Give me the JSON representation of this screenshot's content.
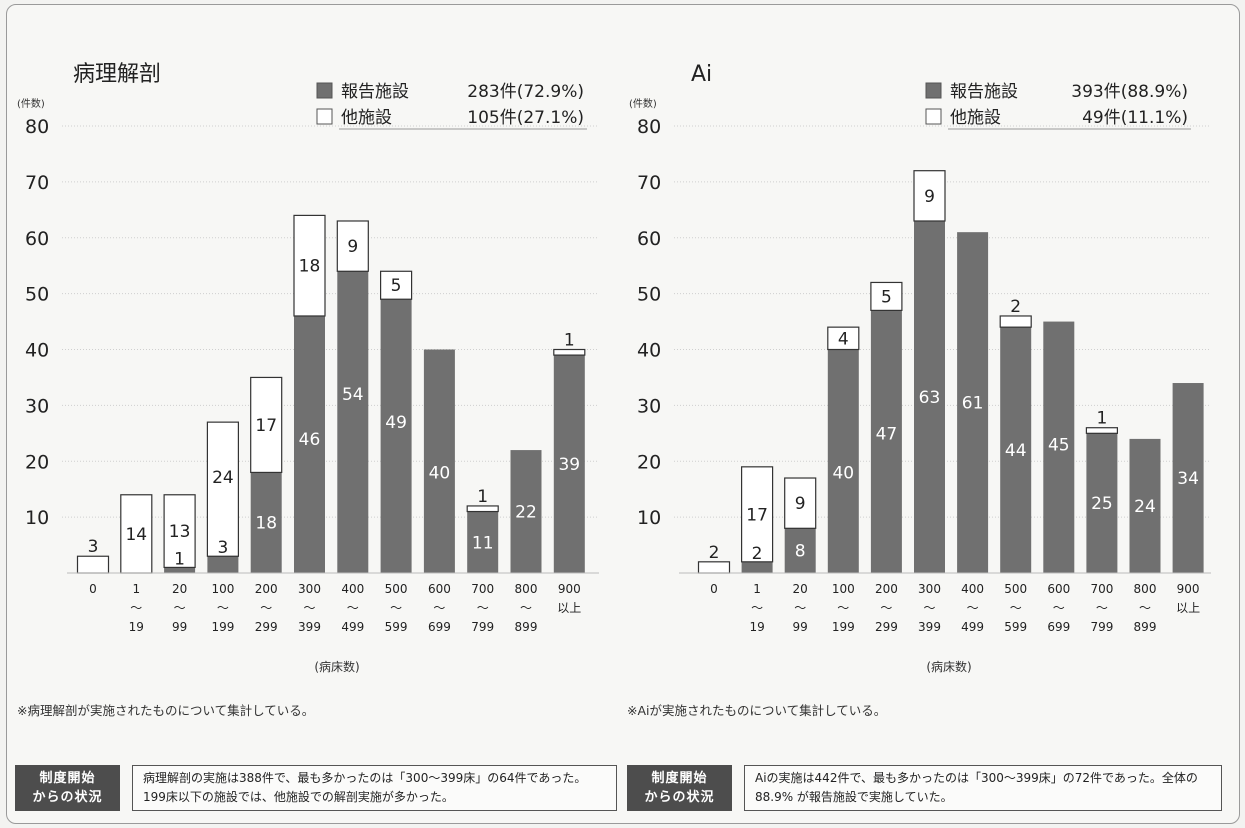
{
  "charts": [
    {
      "title": "病理解剖",
      "unit": "(件数)",
      "xlabel": "(病床数)",
      "legend": [
        {
          "label": "報告施設",
          "value": "283件(72.9%)"
        },
        {
          "label": "他施設",
          "value": "105件(27.1%)"
        }
      ],
      "note": "※病理解剖が実施されたものについて集計している。",
      "badge": [
        "制度開始",
        "からの状況"
      ],
      "summary": "病理解剖の実施は388件で、最も多かったのは「300～399床」の64件であった。199床以下の施設では、他施設での解剖実施が多かった。"
    },
    {
      "title": "Ai",
      "unit": "(件数)",
      "xlabel": "(病床数)",
      "legend": [
        {
          "label": "報告施設",
          "value": "393件(88.9%)"
        },
        {
          "label": "他施設",
          "value": "49件(11.1%)"
        }
      ],
      "note": "※Aiが実施されたものについて集計している。",
      "badge": [
        "制度開始",
        "からの状況"
      ],
      "summary": "Aiの実施は442件で、最も多かったのは「300～399床」の72件であった。全体の88.9% が報告施設で実施していた。"
    }
  ],
  "colors": {
    "reporting": "#707070",
    "other": "#ffffff"
  },
  "chart_data": [
    {
      "type": "bar",
      "stacked": true,
      "title": "病理解剖",
      "xlabel": "(病床数)",
      "ylabel": "(件数)",
      "ylim": [
        0,
        80
      ],
      "yticks": [
        10,
        20,
        30,
        40,
        50,
        60,
        70,
        80
      ],
      "categories": [
        [
          "0"
        ],
        [
          "1",
          "～",
          "19"
        ],
        [
          "20",
          "～",
          "99"
        ],
        [
          "100",
          "～",
          "199"
        ],
        [
          "200",
          "～",
          "299"
        ],
        [
          "300",
          "～",
          "399"
        ],
        [
          "400",
          "～",
          "499"
        ],
        [
          "500",
          "～",
          "599"
        ],
        [
          "600",
          "～",
          "699"
        ],
        [
          "700",
          "～",
          "799"
        ],
        [
          "800",
          "～",
          "899"
        ],
        [
          "900",
          "以上"
        ]
      ],
      "series": [
        {
          "name": "報告施設",
          "values": [
            0,
            0,
            1,
            3,
            18,
            46,
            54,
            49,
            40,
            11,
            22,
            39
          ]
        },
        {
          "name": "他施設",
          "values": [
            3,
            14,
            13,
            24,
            17,
            18,
            9,
            5,
            0,
            1,
            0,
            1
          ]
        }
      ]
    },
    {
      "type": "bar",
      "stacked": true,
      "title": "Ai",
      "xlabel": "(病床数)",
      "ylabel": "(件数)",
      "ylim": [
        0,
        80
      ],
      "yticks": [
        10,
        20,
        30,
        40,
        50,
        60,
        70,
        80
      ],
      "categories": [
        [
          "0"
        ],
        [
          "1",
          "～",
          "19"
        ],
        [
          "20",
          "～",
          "99"
        ],
        [
          "100",
          "～",
          "199"
        ],
        [
          "200",
          "～",
          "299"
        ],
        [
          "300",
          "～",
          "399"
        ],
        [
          "400",
          "～",
          "499"
        ],
        [
          "500",
          "～",
          "599"
        ],
        [
          "600",
          "～",
          "699"
        ],
        [
          "700",
          "～",
          "799"
        ],
        [
          "800",
          "～",
          "899"
        ],
        [
          "900",
          "以上"
        ]
      ],
      "series": [
        {
          "name": "報告施設",
          "values": [
            0,
            2,
            8,
            40,
            47,
            63,
            61,
            44,
            45,
            25,
            24,
            34
          ]
        },
        {
          "name": "他施設",
          "values": [
            2,
            17,
            9,
            4,
            5,
            9,
            0,
            2,
            0,
            1,
            0,
            0
          ]
        }
      ]
    }
  ]
}
